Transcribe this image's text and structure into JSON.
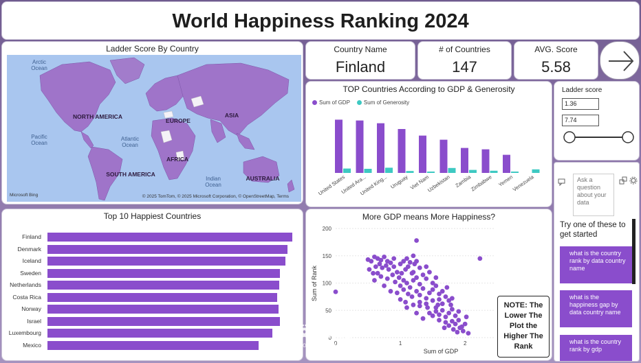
{
  "header": {
    "title": "World Happiness Ranking 2024"
  },
  "map": {
    "title": "Ladder Score By Country",
    "ocean_labels": [
      "Arctic Ocean",
      "Pacific Ocean",
      "Atlantic Ocean",
      "Indian Ocean"
    ],
    "land_labels": [
      "NORTH AMERICA",
      "EUROPE",
      "ASIA",
      "AFRICA",
      "SOUTH AMERICA",
      "AUSTRALIA"
    ],
    "credit": "© 2025 TomTom, © 2025 Microsoft Corporation, © OpenStreetMap, Terms",
    "logo": "Microsoft Bing",
    "colors": {
      "ocean": "#a9c6ef",
      "land": "#9f74c9",
      "nodata": "#f4f2f7"
    }
  },
  "cards": [
    {
      "label": "Country Name",
      "value": "Finland"
    },
    {
      "label": "# of Countries",
      "value": "147"
    },
    {
      "label": "AVG. Score",
      "value": "5.58"
    }
  ],
  "nav": {
    "icon": "arrow-right-icon"
  },
  "gdp_chart": {
    "title": "TOP Countries According to GDP & Generosity",
    "legend": [
      "Sum of GDP",
      "Sum of Generosity"
    ],
    "colors": {
      "gdp": "#8a4dcc",
      "generosity": "#3ec9c2"
    }
  },
  "slicer": {
    "title": "Ladder score",
    "min": "1.36",
    "max": "7.74"
  },
  "qa": {
    "placeholder": "Ask a question about your data",
    "try_text": "Try one of these to get started",
    "suggestions": [
      "what is the country rank by data country name",
      "what is the happiness gap by data country name",
      "what is the country rank by gdp"
    ]
  },
  "top10": {
    "title": "Top 10 Happiest Countries"
  },
  "scatter": {
    "title": "More GDP means More Happiness?",
    "note": "NOTE: The Lower The Plot the Higher The Rank"
  },
  "watermark": {
    "arabic": "مستقل",
    "latin": "mostaql.com"
  },
  "chart_data": [
    {
      "type": "bar",
      "title": "TOP Countries According to GDP & Generosity",
      "categories": [
        "United States",
        "United Ara...",
        "United King...",
        "Uruguay",
        "Viet Nam",
        "Uzbekistan",
        "Zambia",
        "Zimbabwe",
        "Yemen",
        "Venezuela"
      ],
      "series": [
        {
          "name": "Sum of GDP",
          "values": [
            1.94,
            1.91,
            1.81,
            1.6,
            1.36,
            1.21,
            0.91,
            0.86,
            0.66,
            0.0
          ]
        },
        {
          "name": "Sum of Generosity",
          "values": [
            0.16,
            0.15,
            0.19,
            0.07,
            0.05,
            0.18,
            0.11,
            0.08,
            0.05,
            0.13
          ]
        }
      ],
      "legend": "top-left"
    },
    {
      "type": "bar",
      "orientation": "horizontal",
      "title": "Top 10 Happiest Countries",
      "categories": [
        "Finland",
        "Denmark",
        "Iceland",
        "Sweden",
        "Netherlands",
        "Costa Rica",
        "Norway",
        "Israel",
        "Luxembourg",
        "Mexico"
      ],
      "values": [
        7.74,
        7.58,
        7.53,
        7.34,
        7.32,
        7.27,
        7.3,
        7.34,
        7.12,
        6.68
      ]
    },
    {
      "type": "scatter",
      "title": "More GDP means More Happiness?",
      "xlabel": "Sum of GDP",
      "ylabel": "Sum of Rank",
      "xlim": [
        0,
        2.2
      ],
      "ylim": [
        0,
        200
      ],
      "xticks": [
        0,
        1,
        2
      ],
      "yticks": [
        0,
        50,
        100,
        150,
        200
      ],
      "points": [
        [
          0.0,
          84
        ],
        [
          1.25,
          178
        ],
        [
          2.23,
          145
        ],
        [
          0.5,
          143
        ],
        [
          0.55,
          140
        ],
        [
          0.6,
          148
        ],
        [
          0.65,
          145
        ],
        [
          0.7,
          142
        ],
        [
          0.75,
          148
        ],
        [
          0.8,
          140
        ],
        [
          0.52,
          125
        ],
        [
          0.58,
          118
        ],
        [
          0.62,
          130
        ],
        [
          0.68,
          135
        ],
        [
          0.72,
          128
        ],
        [
          0.78,
          132
        ],
        [
          0.82,
          125
        ],
        [
          0.85,
          137
        ],
        [
          0.9,
          130
        ],
        [
          0.95,
          120
        ],
        [
          1.0,
          135
        ],
        [
          1.05,
          140
        ],
        [
          1.1,
          145
        ],
        [
          1.15,
          138
        ],
        [
          0.6,
          105
        ],
        [
          0.7,
          112
        ],
        [
          0.8,
          108
        ],
        [
          0.88,
          115
        ],
        [
          0.92,
          102
        ],
        [
          0.98,
          110
        ],
        [
          1.02,
          118
        ],
        [
          1.08,
          125
        ],
        [
          1.12,
          130
        ],
        [
          1.18,
          118
        ],
        [
          1.22,
          135
        ],
        [
          1.25,
          140
        ],
        [
          1.3,
          128
        ],
        [
          1.0,
          95
        ],
        [
          1.05,
          88
        ],
        [
          1.1,
          100
        ],
        [
          1.15,
          92
        ],
        [
          1.2,
          105
        ],
        [
          1.25,
          110
        ],
        [
          1.3,
          98
        ],
        [
          1.35,
          115
        ],
        [
          1.4,
          108
        ],
        [
          1.45,
          120
        ],
        [
          1.5,
          100
        ],
        [
          1.12,
          80
        ],
        [
          1.18,
          75
        ],
        [
          1.25,
          85
        ],
        [
          1.3,
          78
        ],
        [
          1.35,
          90
        ],
        [
          1.4,
          72
        ],
        [
          1.45,
          82
        ],
        [
          1.5,
          88
        ],
        [
          1.55,
          95
        ],
        [
          1.6,
          80
        ],
        [
          1.0,
          70
        ],
        [
          1.08,
          65
        ],
        [
          1.2,
          60
        ],
        [
          1.3,
          58
        ],
        [
          1.4,
          62
        ],
        [
          1.5,
          68
        ],
        [
          1.55,
          55
        ],
        [
          1.6,
          70
        ],
        [
          1.65,
          62
        ],
        [
          1.7,
          75
        ],
        [
          1.75,
          68
        ],
        [
          1.45,
          45
        ],
        [
          1.5,
          40
        ],
        [
          1.55,
          48
        ],
        [
          1.6,
          42
        ],
        [
          1.65,
          50
        ],
        [
          1.7,
          38
        ],
        [
          1.75,
          45
        ],
        [
          1.8,
          52
        ],
        [
          1.85,
          40
        ],
        [
          1.7,
          28
        ],
        [
          1.75,
          22
        ],
        [
          1.8,
          30
        ],
        [
          1.85,
          25
        ],
        [
          1.9,
          32
        ],
        [
          1.95,
          20
        ],
        [
          1.82,
          15
        ],
        [
          1.88,
          10
        ],
        [
          1.92,
          18
        ],
        [
          1.97,
          12
        ],
        [
          2.0,
          25
        ],
        [
          2.05,
          8
        ],
        [
          1.1,
          55
        ],
        [
          1.25,
          45
        ],
        [
          0.95,
          82
        ],
        [
          0.75,
          95
        ],
        [
          0.85,
          85
        ],
        [
          1.35,
          35
        ],
        [
          1.6,
          32
        ],
        [
          1.68,
          18
        ],
        [
          1.78,
          60
        ],
        [
          1.9,
          48
        ],
        [
          0.9,
          145
        ],
        [
          1.2,
          150
        ],
        [
          0.65,
          118
        ],
        [
          1.4,
          130
        ],
        [
          1.55,
          110
        ],
        [
          1.65,
          85
        ],
        [
          1.72,
          92
        ],
        [
          1.2,
          120
        ],
        [
          1.05,
          105
        ],
        [
          1.3,
          65
        ],
        [
          1.42,
          55
        ],
        [
          1.58,
          60
        ],
        [
          1.8,
          72
        ],
        [
          2.02,
          38
        ]
      ]
    }
  ]
}
